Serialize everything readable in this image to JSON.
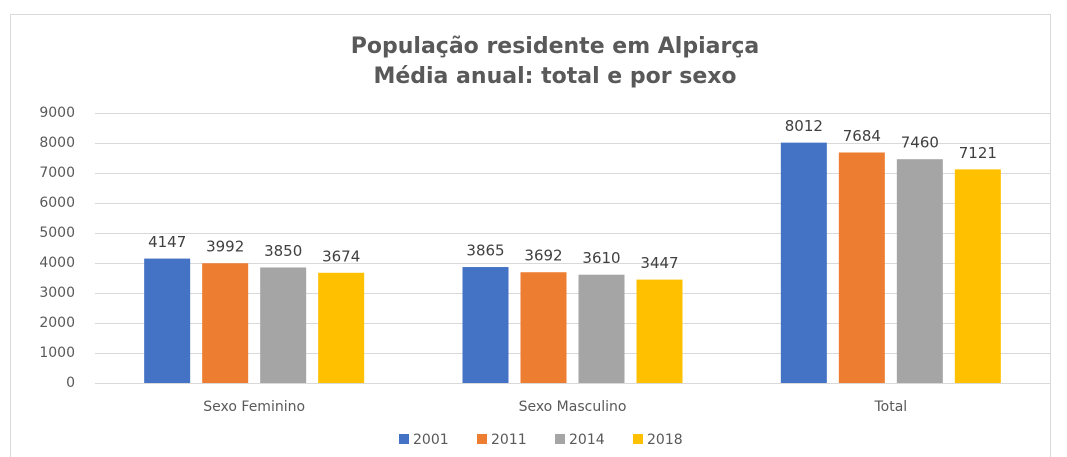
{
  "chart_data": {
    "type": "bar",
    "title": "População residente em Alpiarça",
    "subtitle": "Média anual: total e por sexo",
    "categories": [
      "Sexo Feminino",
      "Sexo Masculino",
      "Total"
    ],
    "series": [
      {
        "name": "2001",
        "color": "#4472c4",
        "values": [
          4147,
          3865,
          8012
        ]
      },
      {
        "name": "2011",
        "color": "#ed7d31",
        "values": [
          3992,
          3692,
          7684
        ]
      },
      {
        "name": "2014",
        "color": "#a5a5a5",
        "values": [
          3850,
          3610,
          7460
        ]
      },
      {
        "name": "2018",
        "color": "#ffc000",
        "values": [
          3674,
          3447,
          7121
        ]
      }
    ],
    "ylim": [
      0,
      9000
    ],
    "yticks": [
      0,
      1000,
      2000,
      3000,
      4000,
      5000,
      6000,
      7000,
      8000,
      9000
    ],
    "grid": true,
    "legend": "bottom"
  }
}
